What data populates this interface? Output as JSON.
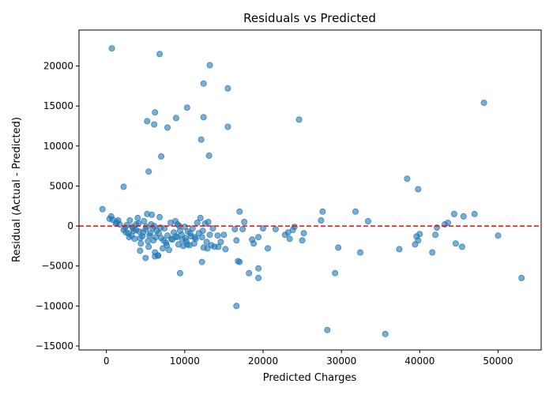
{
  "chart_data": {
    "type": "scatter",
    "title": "Residuals vs Predicted",
    "xlabel": "Predicted Charges",
    "ylabel": "Residual (Actual - Predicted)",
    "xlim": [
      -3500,
      55500
    ],
    "ylim": [
      -15500,
      24500
    ],
    "xticks": [
      0,
      10000,
      20000,
      30000,
      40000,
      50000
    ],
    "yticks": [
      -15000,
      -10000,
      -5000,
      0,
      5000,
      10000,
      15000,
      20000
    ],
    "grid": false,
    "point_color": "#1f77b4",
    "reference_line": {
      "y": 0,
      "color": "#ff0000",
      "style": "dashed"
    },
    "points": [
      [
        -500,
        2100
      ],
      [
        400,
        900
      ],
      [
        600,
        1200
      ],
      [
        800,
        800
      ],
      [
        1300,
        500
      ],
      [
        1500,
        700
      ],
      [
        1700,
        200
      ],
      [
        2200,
        -500
      ],
      [
        2400,
        -200
      ],
      [
        2600,
        100
      ],
      [
        2800,
        -900
      ],
      [
        3000,
        700
      ],
      [
        3200,
        -1200
      ],
      [
        3400,
        -300
      ],
      [
        3600,
        -1600
      ],
      [
        3800,
        200
      ],
      [
        4000,
        1000
      ],
      [
        4200,
        -700
      ],
      [
        4400,
        -2200
      ],
      [
        4600,
        -1300
      ],
      [
        4800,
        600
      ],
      [
        5000,
        -400
      ],
      [
        5200,
        1500
      ],
      [
        5400,
        -2600
      ],
      [
        5600,
        -900
      ],
      [
        5800,
        1400
      ],
      [
        6000,
        -1800
      ],
      [
        6200,
        -3300
      ],
      [
        6400,
        -600
      ],
      [
        6600,
        -3700
      ],
      [
        6800,
        1100
      ],
      [
        7000,
        -1500
      ],
      [
        7200,
        -2800
      ],
      [
        7400,
        -300
      ],
      [
        7600,
        -2100
      ],
      [
        7800,
        -1200
      ],
      [
        8000,
        -3000
      ],
      [
        8200,
        400
      ],
      [
        8400,
        -1700
      ],
      [
        8600,
        -800
      ],
      [
        8800,
        600
      ],
      [
        9000,
        -1400
      ],
      [
        9200,
        -2300
      ],
      [
        9400,
        -600
      ],
      [
        9600,
        -1100
      ],
      [
        9800,
        -2500
      ],
      [
        10000,
        -100
      ],
      [
        10200,
        -1900
      ],
      [
        10400,
        -700
      ],
      [
        10600,
        -2400
      ],
      [
        10800,
        -1300
      ],
      [
        11000,
        -300
      ],
      [
        11200,
        -2200
      ],
      [
        11400,
        -1600
      ],
      [
        11600,
        400
      ],
      [
        11800,
        -900
      ],
      [
        12000,
        1000
      ],
      [
        12200,
        -1400
      ],
      [
        12400,
        -2700
      ],
      [
        12600,
        300
      ],
      [
        12800,
        -2000
      ],
      [
        13000,
        500
      ],
      [
        13200,
        -1100
      ],
      [
        13400,
        -2400
      ],
      [
        13600,
        -300
      ],
      [
        13800,
        -2600
      ],
      [
        14200,
        -1200
      ],
      [
        14600,
        -2000
      ],
      [
        15000,
        -1100
      ],
      [
        15200,
        -2900
      ],
      [
        16400,
        -400
      ],
      [
        16600,
        -1800
      ],
      [
        17400,
        -400
      ],
      [
        17600,
        500
      ],
      [
        18600,
        -1700
      ],
      [
        18800,
        -2200
      ],
      [
        19400,
        -1400
      ],
      [
        20000,
        -300
      ],
      [
        20600,
        -2800
      ],
      [
        21600,
        -400
      ],
      [
        22800,
        -1100
      ],
      [
        23200,
        -800
      ],
      [
        23400,
        -1600
      ],
      [
        23800,
        -500
      ],
      [
        24000,
        -100
      ],
      [
        25000,
        -1800
      ],
      [
        25200,
        -900
      ],
      [
        27400,
        700
      ],
      [
        27600,
        1800
      ],
      [
        29600,
        -2700
      ],
      [
        31800,
        1800
      ],
      [
        32400,
        -3300
      ],
      [
        33400,
        600
      ],
      [
        37400,
        -2900
      ],
      [
        39400,
        -2300
      ],
      [
        39600,
        -1300
      ],
      [
        39800,
        -1800
      ],
      [
        40000,
        -1000
      ],
      [
        41600,
        -3300
      ],
      [
        42000,
        -1100
      ],
      [
        42200,
        -200
      ],
      [
        43200,
        200
      ],
      [
        43600,
        400
      ],
      [
        44400,
        1500
      ],
      [
        44600,
        -2200
      ],
      [
        45400,
        -2600
      ],
      [
        45600,
        1200
      ],
      [
        47000,
        1500
      ],
      [
        50000,
        -1200
      ],
      [
        3800,
        -500
      ],
      [
        4300,
        -1500
      ],
      [
        5100,
        -100
      ],
      [
        5500,
        -1200
      ],
      [
        6100,
        0
      ],
      [
        6700,
        -900
      ],
      [
        7300,
        -1800
      ],
      [
        7700,
        -2400
      ],
      [
        8300,
        -1600
      ],
      [
        8900,
        -1300
      ],
      [
        9300,
        0
      ],
      [
        9700,
        -1700
      ],
      [
        10300,
        -2300
      ],
      [
        10700,
        -900
      ],
      [
        11300,
        -1400
      ],
      [
        12300,
        -600
      ],
      [
        12900,
        -2800
      ],
      [
        3300,
        -100
      ],
      [
        4700,
        -800
      ],
      [
        5300,
        -1900
      ],
      [
        5900,
        -300
      ],
      [
        6300,
        -1400
      ],
      [
        6900,
        -200
      ],
      [
        9100,
        200
      ],
      [
        10100,
        -1500
      ],
      [
        14300,
        -2600
      ],
      [
        2500,
        -800
      ],
      [
        2900,
        -1400
      ],
      [
        1200,
        300
      ],
      [
        5700,
        200
      ],
      [
        4100,
        300
      ],
      [
        3500,
        -600
      ],
      [
        15500,
        12400
      ],
      [
        15500,
        17200
      ],
      [
        13200,
        20100
      ],
      [
        12400,
        17800
      ],
      [
        6800,
        21500
      ],
      [
        700,
        22200
      ],
      [
        6200,
        14200
      ],
      [
        5200,
        13100
      ],
      [
        6100,
        12700
      ],
      [
        7800,
        12300
      ],
      [
        8900,
        13500
      ],
      [
        10300,
        14800
      ],
      [
        12400,
        13600
      ],
      [
        12100,
        10800
      ],
      [
        13100,
        8800
      ],
      [
        7000,
        8700
      ],
      [
        5400,
        6800
      ],
      [
        2200,
        4900
      ],
      [
        24600,
        13300
      ],
      [
        38400,
        5900
      ],
      [
        39800,
        4600
      ],
      [
        48200,
        15400
      ],
      [
        53000,
        -6500
      ],
      [
        35600,
        -13500
      ],
      [
        28200,
        -13000
      ],
      [
        16600,
        -10000
      ],
      [
        19400,
        -6500
      ],
      [
        19400,
        -5300
      ],
      [
        18200,
        -5900
      ],
      [
        16800,
        -4400
      ],
      [
        17000,
        -4500
      ],
      [
        12200,
        -4500
      ],
      [
        9400,
        -5900
      ],
      [
        29200,
        -5900
      ],
      [
        5000,
        -4000
      ],
      [
        6200,
        -3800
      ],
      [
        17000,
        1800
      ],
      [
        4300,
        -3100
      ],
      [
        6600,
        -3700
      ]
    ]
  }
}
